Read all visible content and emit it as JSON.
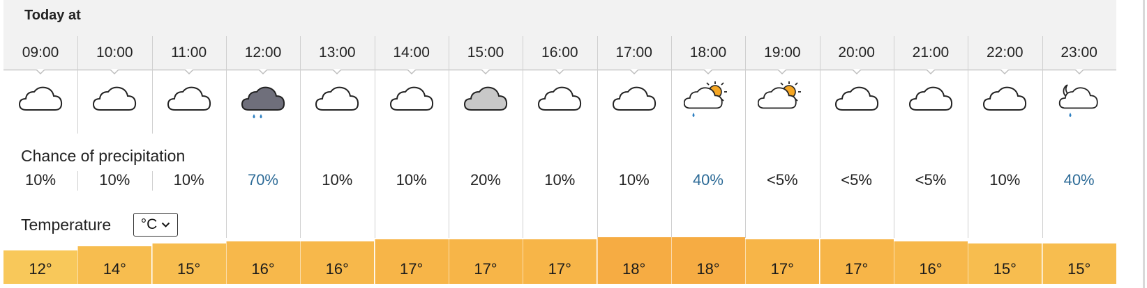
{
  "header": {
    "title": "Today at"
  },
  "precipitation": {
    "label": "Chance of precipitation"
  },
  "temperature": {
    "label": "Temperature",
    "unit": "°C"
  },
  "colors": {
    "header_bg": "#f2f2f2",
    "precip_high": "#2d6b97",
    "cloud_grey": "#c8c8c8",
    "cloud_dark": "#6f6f7b",
    "rain_drop": "#2d7fc1",
    "sun": "#f5a623",
    "temp_12": "#f8c85a",
    "temp_14_15": "#f7bd4f",
    "temp_16": "#f7b84b",
    "temp_17": "#f7b548",
    "temp_18": "#f6ac43"
  },
  "hours": [
    {
      "time": "09:00",
      "icon": "cloud-icon",
      "precip": "10%",
      "temp": "12°",
      "temp_value": 12
    },
    {
      "time": "10:00",
      "icon": "cloud-icon",
      "precip": "10%",
      "temp": "14°",
      "temp_value": 14
    },
    {
      "time": "11:00",
      "icon": "cloud-icon",
      "precip": "10%",
      "temp": "15°",
      "temp_value": 15
    },
    {
      "time": "12:00",
      "icon": "heavy-rain-cloud-icon",
      "precip": "70%",
      "temp": "16°",
      "temp_value": 16
    },
    {
      "time": "13:00",
      "icon": "cloud-icon",
      "precip": "10%",
      "temp": "16°",
      "temp_value": 16
    },
    {
      "time": "14:00",
      "icon": "cloud-icon",
      "precip": "10%",
      "temp": "17°",
      "temp_value": 17
    },
    {
      "time": "15:00",
      "icon": "grey-cloud-icon",
      "precip": "20%",
      "temp": "17°",
      "temp_value": 17
    },
    {
      "time": "16:00",
      "icon": "cloud-icon",
      "precip": "10%",
      "temp": "17°",
      "temp_value": 17
    },
    {
      "time": "17:00",
      "icon": "cloud-icon",
      "precip": "10%",
      "temp": "18°",
      "temp_value": 18
    },
    {
      "time": "18:00",
      "icon": "sun-cloud-shower-icon",
      "precip": "40%",
      "temp": "18°",
      "temp_value": 18
    },
    {
      "time": "19:00",
      "icon": "sun-cloud-icon",
      "precip": "<5%",
      "temp": "17°",
      "temp_value": 17
    },
    {
      "time": "20:00",
      "icon": "cloud-icon",
      "precip": "<5%",
      "temp": "17°",
      "temp_value": 17
    },
    {
      "time": "21:00",
      "icon": "cloud-icon",
      "precip": "<5%",
      "temp": "16°",
      "temp_value": 16
    },
    {
      "time": "22:00",
      "icon": "cloud-icon",
      "precip": "10%",
      "temp": "15°",
      "temp_value": 15
    },
    {
      "time": "23:00",
      "icon": "moon-cloud-shower-icon",
      "precip": "40%",
      "temp": "15°",
      "temp_value": 15
    }
  ]
}
